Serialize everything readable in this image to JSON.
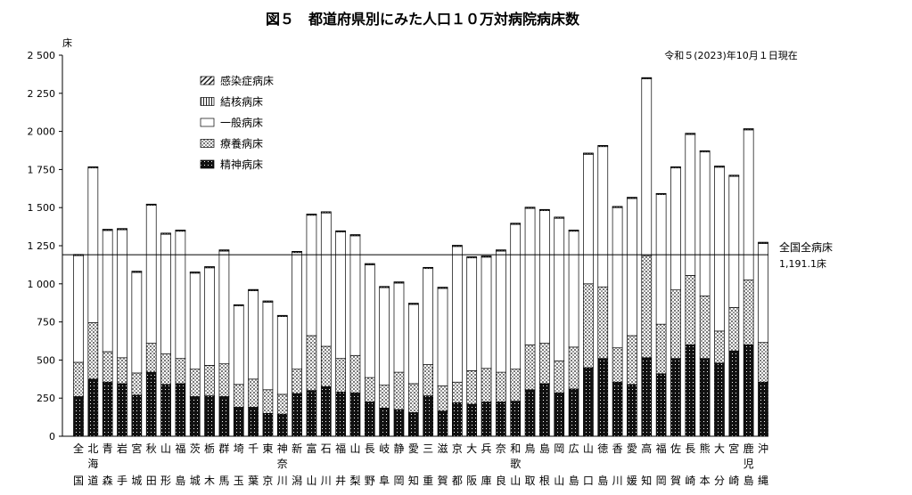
{
  "chart_data": {
    "type": "bar",
    "stacked": true,
    "title": "図５　都道府県別にみた人口１０万対病院病床数",
    "note": "令和５(2023)年10月１日現在",
    "ylabel": "床",
    "ylim": [
      0,
      2500
    ],
    "yticks": [
      0,
      250,
      500,
      750,
      1000,
      1250,
      1500,
      1750,
      2000,
      2250,
      2500
    ],
    "ytick_labels": [
      "0",
      "250",
      "500",
      "750",
      "1 000",
      "1 250",
      "1 500",
      "1 750",
      "2 000",
      "2 250",
      "2 500"
    ],
    "grid": false,
    "legend_position": "top-left",
    "categories": [
      [
        "全",
        "",
        "国"
      ],
      [
        "北",
        "海",
        "道"
      ],
      [
        "青",
        "",
        "森"
      ],
      [
        "岩",
        "",
        "手"
      ],
      [
        "宮",
        "",
        "城"
      ],
      [
        "秋",
        "",
        "田"
      ],
      [
        "山",
        "",
        "形"
      ],
      [
        "福",
        "",
        "島"
      ],
      [
        "茨",
        "",
        "城"
      ],
      [
        "栃",
        "",
        "木"
      ],
      [
        "群",
        "",
        "馬"
      ],
      [
        "埼",
        "",
        "玉"
      ],
      [
        "千",
        "",
        "葉"
      ],
      [
        "東",
        "",
        "京"
      ],
      [
        "神",
        "奈",
        "川"
      ],
      [
        "新",
        "",
        "潟"
      ],
      [
        "富",
        "",
        "山"
      ],
      [
        "石",
        "",
        "川"
      ],
      [
        "福",
        "",
        "井"
      ],
      [
        "山",
        "",
        "梨"
      ],
      [
        "長",
        "",
        "野"
      ],
      [
        "岐",
        "",
        "阜"
      ],
      [
        "静",
        "",
        "岡"
      ],
      [
        "愛",
        "",
        "知"
      ],
      [
        "三",
        "",
        "重"
      ],
      [
        "滋",
        "",
        "賀"
      ],
      [
        "京",
        "",
        "都"
      ],
      [
        "大",
        "",
        "阪"
      ],
      [
        "兵",
        "",
        "庫"
      ],
      [
        "奈",
        "",
        "良"
      ],
      [
        "和",
        "歌",
        "山"
      ],
      [
        "鳥",
        "",
        "取"
      ],
      [
        "島",
        "",
        "根"
      ],
      [
        "岡",
        "",
        "山"
      ],
      [
        "広",
        "",
        "島"
      ],
      [
        "山",
        "",
        "口"
      ],
      [
        "徳",
        "",
        "島"
      ],
      [
        "香",
        "",
        "川"
      ],
      [
        "愛",
        "",
        "媛"
      ],
      [
        "高",
        "",
        "知"
      ],
      [
        "福",
        "",
        "岡"
      ],
      [
        "佐",
        "",
        "賀"
      ],
      [
        "長",
        "",
        "崎"
      ],
      [
        "熊",
        "",
        "本"
      ],
      [
        "大",
        "",
        "分"
      ],
      [
        "宮",
        "",
        "崎"
      ],
      [
        "鹿",
        "児",
        "島"
      ],
      [
        "沖",
        "",
        "縄"
      ]
    ],
    "series": [
      {
        "name": "精神病床",
        "pattern": "dots-dark",
        "values": [
          260,
          375,
          355,
          345,
          270,
          420,
          340,
          345,
          260,
          265,
          260,
          190,
          190,
          150,
          145,
          280,
          300,
          325,
          290,
          285,
          225,
          185,
          175,
          155,
          265,
          165,
          220,
          210,
          225,
          225,
          230,
          305,
          345,
          285,
          310,
          450,
          510,
          355,
          340,
          515,
          410,
          510,
          600,
          510,
          480,
          560,
          600,
          355
        ]
      },
      {
        "name": "療養病床",
        "pattern": "cross-hatch",
        "values": [
          225,
          370,
          200,
          170,
          145,
          190,
          200,
          165,
          180,
          200,
          215,
          150,
          185,
          155,
          130,
          160,
          360,
          265,
          220,
          245,
          160,
          150,
          245,
          190,
          205,
          165,
          135,
          220,
          220,
          195,
          210,
          295,
          265,
          210,
          275,
          550,
          470,
          225,
          320,
          670,
          325,
          450,
          455,
          410,
          210,
          285,
          425,
          260
        ]
      },
      {
        "name": "一般病床",
        "pattern": "empty",
        "values": [
          700,
          1015,
          795,
          840,
          660,
          905,
          785,
          835,
          630,
          640,
          740,
          515,
          580,
          575,
          510,
          765,
          790,
          875,
          830,
          785,
          740,
          640,
          585,
          520,
          630,
          640,
          890,
          740,
          730,
          795,
          950,
          895,
          870,
          935,
          760,
          850,
          920,
          920,
          900,
          1160,
          850,
          800,
          925,
          945,
          1075,
          860,
          985,
          650
        ]
      },
      {
        "name": "結核病床",
        "pattern": "vertical-lines",
        "values": [
          6,
          6,
          6,
          6,
          6,
          6,
          6,
          6,
          6,
          6,
          6,
          6,
          6,
          6,
          6,
          6,
          6,
          6,
          6,
          6,
          6,
          6,
          6,
          6,
          6,
          6,
          6,
          6,
          6,
          6,
          6,
          6,
          6,
          6,
          6,
          6,
          6,
          6,
          6,
          6,
          6,
          6,
          6,
          6,
          6,
          6,
          6,
          6
        ]
      },
      {
        "name": "感染症病床",
        "pattern": "diagonal",
        "values": [
          2,
          2,
          2,
          2,
          2,
          2,
          2,
          2,
          2,
          2,
          2,
          2,
          2,
          2,
          2,
          2,
          2,
          2,
          2,
          2,
          2,
          2,
          2,
          2,
          2,
          2,
          2,
          2,
          2,
          2,
          2,
          2,
          2,
          2,
          2,
          2,
          2,
          2,
          2,
          2,
          2,
          2,
          2,
          2,
          2,
          2,
          2,
          2
        ]
      }
    ],
    "totals": [
      1193,
      1768,
      1358,
      1363,
      1083,
      1523,
      1333,
      1353,
      1078,
      1113,
      1223,
      863,
      963,
      888,
      793,
      1213,
      1458,
      1473,
      1348,
      1323,
      1133,
      983,
      1013,
      873,
      1108,
      978,
      1253,
      1178,
      1183,
      1223,
      1398,
      1503,
      1488,
      1438,
      1353,
      1858,
      1908,
      1508,
      1568,
      2353,
      1593,
      1768,
      1988,
      1873,
      1773,
      1713,
      2018,
      1273
    ],
    "reference_line": {
      "value": 1191.1,
      "label": "全国全病床",
      "value_label": "1,191.1床"
    }
  }
}
